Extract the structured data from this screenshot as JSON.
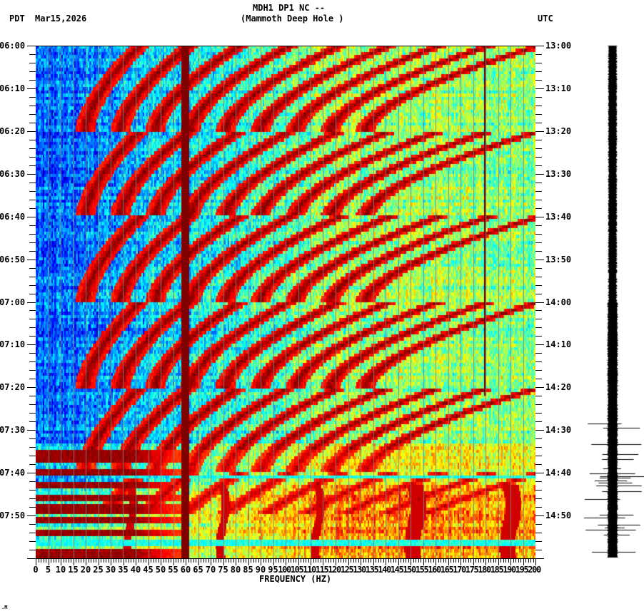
{
  "header": {
    "station_line": "MDH1 DP1 NC --",
    "station_name": "(Mammoth Deep Hole )",
    "left_timezone": "PDT",
    "date": "Mar15,2026",
    "right_timezone": "UTC"
  },
  "footer": {
    "corner_mark": ".M"
  },
  "chart_data": {
    "type": "heatmap",
    "title": "MDH1 DP1 NC -- (Mammoth Deep Hole ) spectrogram",
    "xlabel": "FREQUENCY (HZ)",
    "ylabel_left": "PDT",
    "ylabel_right": "UTC",
    "xlim": [
      0,
      200
    ],
    "x_ticks": [
      "0",
      "5",
      "10",
      "15",
      "20",
      "25",
      "30",
      "35",
      "40",
      "45",
      "50",
      "55",
      "60",
      "65",
      "70",
      "75",
      "80",
      "85",
      "90",
      "95",
      "100",
      "105",
      "110",
      "115",
      "120",
      "125",
      "130",
      "135",
      "140",
      "145",
      "150",
      "155",
      "160",
      "165",
      "170",
      "175",
      "180",
      "185",
      "190",
      "195",
      "200"
    ],
    "y_ticks_left": [
      "06:00",
      "06:10",
      "06:20",
      "06:30",
      "06:40",
      "06:50",
      "07:00",
      "07:10",
      "07:20",
      "07:30",
      "07:40",
      "07:50"
    ],
    "y_ticks_right": [
      "13:00",
      "13:10",
      "13:20",
      "13:30",
      "13:40",
      "13:50",
      "14:00",
      "14:10",
      "14:20",
      "14:30",
      "14:40",
      "14:50"
    ],
    "time_range_minutes": [
      0,
      120
    ],
    "colormap": "jet",
    "features": {
      "persistent_lines_hz": [
        60,
        180
      ],
      "line_60hz_color": "#800000",
      "sweep_start_minutes": [
        0,
        20,
        40,
        60,
        80,
        100
      ],
      "sweep_period_minutes": 20,
      "sweep_low_freq_hz": 20,
      "sweep_harmonics_low_hz": [
        20,
        37,
        52,
        65,
        80,
        95,
        110,
        125
      ],
      "broadband_bursts_minutes": [
        95.5,
        97,
        100,
        103,
        106,
        108.5,
        111,
        114,
        116.5,
        119
      ],
      "broadband_bursts_low_freq_max_hz": 40,
      "harmonic_gliding_lines_hz": [
        38,
        75,
        113,
        152,
        190
      ],
      "glide_start_minutes": 103,
      "low_freq_quiet_band_hz": [
        0,
        25
      ]
    },
    "waveform_trace": {
      "label": "seismogram trace",
      "quiet_until_minutes": 88,
      "noisy_after_minutes": 88
    }
  }
}
